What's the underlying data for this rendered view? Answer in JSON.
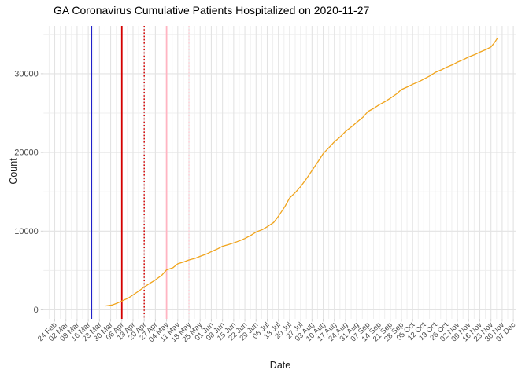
{
  "chart_data": {
    "type": "line",
    "title": "GA Coronavirus Cumulative Patients Hospitalized on 2020-11-27",
    "xlabel": "Date",
    "ylabel": "Count",
    "x_start_date": "2020-02-24",
    "x_tick_interval_days": 7,
    "x_tick_labels": [
      "24 Feb",
      "02 Mar",
      "09 Mar",
      "16 Mar",
      "23 Mar",
      "30 Mar",
      "06 Apr",
      "13 Apr",
      "20 Apr",
      "27 Apr",
      "04 May",
      "11 May",
      "18 May",
      "25 May",
      "01 Jun",
      "08 Jun",
      "15 Jun",
      "22 Jun",
      "29 Jun",
      "06 Jul",
      "13 Jul",
      "20 Jul",
      "27 Jul",
      "03 Aug",
      "10 Aug",
      "17 Aug",
      "24 Aug",
      "31 Aug",
      "07 Sep",
      "14 Sep",
      "21 Sep",
      "28 Sep",
      "05 Oct",
      "12 Oct",
      "19 Oct",
      "26 Oct",
      "02 Nov",
      "09 Nov",
      "16 Nov",
      "23 Nov",
      "30 Nov",
      "07 Dec"
    ],
    "y_ticks": [
      0,
      10000,
      20000,
      30000
    ],
    "y_minor_ticks": [
      5000,
      15000,
      25000,
      35000
    ],
    "ylim": [
      0,
      35000
    ],
    "grid": {
      "major_color": "#e3e3e3",
      "minor_color": "#efefef",
      "tick_color": "#d2d2d2"
    },
    "event_lines": [
      {
        "date": "2020-03-18",
        "color": "#2121c8",
        "style": "solid",
        "name": "vline-blue-solid"
      },
      {
        "date": "2020-04-06",
        "color": "#d40000",
        "style": "solid",
        "name": "vline-red-solid"
      },
      {
        "date": "2020-04-20",
        "color": "#d40000",
        "style": "dotted",
        "name": "vline-red-dotted"
      },
      {
        "date": "2020-05-04",
        "color": "#ffb4c2",
        "style": "solid",
        "name": "vline-pink-solid"
      },
      {
        "date": "2020-05-18",
        "color": "#ffcdd6",
        "style": "dotted",
        "name": "vline-pink-dotted"
      }
    ],
    "series": [
      {
        "name": "cumulative-patients-hospitalized",
        "color": "#f0a41c",
        "points": [
          [
            "2020-03-27",
            500
          ],
          [
            "2020-03-31",
            620
          ],
          [
            "2020-04-03",
            850
          ],
          [
            "2020-04-06",
            1130
          ],
          [
            "2020-04-10",
            1500
          ],
          [
            "2020-04-13",
            1900
          ],
          [
            "2020-04-17",
            2450
          ],
          [
            "2020-04-20",
            2900
          ],
          [
            "2020-04-24",
            3420
          ],
          [
            "2020-04-27",
            3800
          ],
          [
            "2020-05-01",
            4400
          ],
          [
            "2020-05-04",
            5080
          ],
          [
            "2020-05-08",
            5350
          ],
          [
            "2020-05-11",
            5850
          ],
          [
            "2020-05-15",
            6100
          ],
          [
            "2020-05-18",
            6340
          ],
          [
            "2020-05-22",
            6550
          ],
          [
            "2020-05-25",
            6800
          ],
          [
            "2020-05-29",
            7100
          ],
          [
            "2020-06-01",
            7400
          ],
          [
            "2020-06-05",
            7750
          ],
          [
            "2020-06-08",
            8070
          ],
          [
            "2020-06-12",
            8300
          ],
          [
            "2020-06-15",
            8500
          ],
          [
            "2020-06-19",
            8800
          ],
          [
            "2020-06-22",
            9060
          ],
          [
            "2020-06-26",
            9500
          ],
          [
            "2020-06-29",
            9890
          ],
          [
            "2020-07-03",
            10200
          ],
          [
            "2020-07-06",
            10560
          ],
          [
            "2020-07-10",
            11100
          ],
          [
            "2020-07-13",
            11900
          ],
          [
            "2020-07-17",
            13100
          ],
          [
            "2020-07-20",
            14210
          ],
          [
            "2020-07-24",
            15000
          ],
          [
            "2020-07-27",
            15700
          ],
          [
            "2020-07-31",
            16800
          ],
          [
            "2020-08-03",
            17700
          ],
          [
            "2020-08-07",
            18900
          ],
          [
            "2020-08-10",
            19850
          ],
          [
            "2020-08-14",
            20700
          ],
          [
            "2020-08-17",
            21350
          ],
          [
            "2020-08-21",
            22050
          ],
          [
            "2020-08-24",
            22680
          ],
          [
            "2020-08-28",
            23300
          ],
          [
            "2020-08-31",
            23840
          ],
          [
            "2020-09-04",
            24500
          ],
          [
            "2020-09-07",
            25200
          ],
          [
            "2020-09-11",
            25650
          ],
          [
            "2020-09-14",
            26060
          ],
          [
            "2020-09-18",
            26500
          ],
          [
            "2020-09-21",
            26890
          ],
          [
            "2020-09-25",
            27450
          ],
          [
            "2020-09-28",
            27990
          ],
          [
            "2020-10-02",
            28350
          ],
          [
            "2020-10-05",
            28660
          ],
          [
            "2020-10-09",
            29000
          ],
          [
            "2020-10-12",
            29320
          ],
          [
            "2020-10-16",
            29750
          ],
          [
            "2020-10-19",
            30150
          ],
          [
            "2020-10-23",
            30500
          ],
          [
            "2020-10-26",
            30810
          ],
          [
            "2020-10-30",
            31150
          ],
          [
            "2020-11-02",
            31480
          ],
          [
            "2020-11-06",
            31820
          ],
          [
            "2020-11-09",
            32140
          ],
          [
            "2020-11-13",
            32450
          ],
          [
            "2020-11-16",
            32740
          ],
          [
            "2020-11-20",
            33080
          ],
          [
            "2020-11-23",
            33400
          ],
          [
            "2020-11-25",
            33900
          ],
          [
            "2020-11-27",
            34500
          ]
        ]
      }
    ]
  }
}
